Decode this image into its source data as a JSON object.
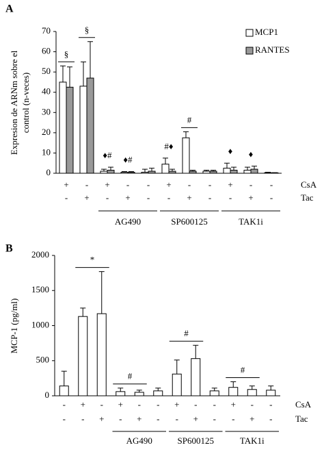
{
  "chart_data": [
    {
      "type": "bar",
      "panel": "A",
      "ylabel": [
        "Expresion de ARNm sobre el",
        "control (n-veces)"
      ],
      "ylim": [
        0,
        70
      ],
      "yticks": [
        0,
        10,
        20,
        30,
        40,
        50,
        60,
        70
      ],
      "conditions": [
        {
          "name": "CsA",
          "labels": [
            "+",
            "-",
            "+",
            "-",
            "-",
            "+",
            "-",
            "-",
            "+",
            "-",
            "-"
          ]
        },
        {
          "name": "Tac",
          "labels": [
            "-",
            "+",
            "-",
            "+",
            "-",
            "-",
            "+",
            "-",
            "-",
            "+",
            "-"
          ]
        }
      ],
      "group_labels": [
        "AG490",
        "SP600125",
        "TAK1i"
      ],
      "series": [
        {
          "name": "MCP1",
          "color": "#ffffff",
          "values": [
            45,
            43,
            1,
            0.5,
            0.5,
            4.5,
            17.5,
            1,
            2.5,
            1.5,
            0.3
          ],
          "errors": [
            8,
            12,
            1,
            0.3,
            1.5,
            3,
            3,
            0.5,
            2.5,
            1.5,
            0.2
          ]
        },
        {
          "name": "RANTES",
          "color": "#999999",
          "values": [
            42.5,
            47,
            1.5,
            0.5,
            1,
            1,
            1,
            1,
            1.5,
            2,
            0.2
          ],
          "errors": [
            10,
            18,
            1.5,
            0.3,
            1.5,
            1,
            0.5,
            0.5,
            1.5,
            1.5,
            0.1
          ]
        }
      ],
      "annotations": [
        "§",
        "§",
        "♦#",
        "♦#",
        "#♦",
        "#",
        "♦",
        "♦"
      ]
    },
    {
      "type": "bar",
      "panel": "B",
      "ylabel": [
        "MCP-1 (pg/ml)"
      ],
      "ylim": [
        0,
        2000
      ],
      "yticks": [
        0,
        500,
        {
          "value": 1000,
          "label": "1000"
        },
        1500,
        2000
      ],
      "conditions": [
        {
          "name": "CsA",
          "labels": [
            "-",
            "+",
            "-",
            "+",
            "-",
            "-",
            "+",
            "-",
            "-",
            "+",
            "-",
            "-"
          ]
        },
        {
          "name": "Tac",
          "labels": [
            "-",
            "-",
            "+",
            "-",
            "+",
            "-",
            "-",
            "+",
            "-",
            "-",
            "+",
            "-"
          ]
        }
      ],
      "group_labels": [
        "AG490",
        "SP600125",
        "TAK1i"
      ],
      "series": [
        {
          "name": "MCP-1",
          "color": "#ffffff",
          "values": [
            140,
            1130,
            1170,
            60,
            50,
            70,
            310,
            530,
            70,
            120,
            90,
            80
          ],
          "errors": [
            210,
            120,
            600,
            50,
            30,
            40,
            200,
            190,
            40,
            80,
            50,
            60
          ]
        }
      ],
      "annotations": [
        "*",
        "#",
        "#",
        "#"
      ]
    }
  ]
}
